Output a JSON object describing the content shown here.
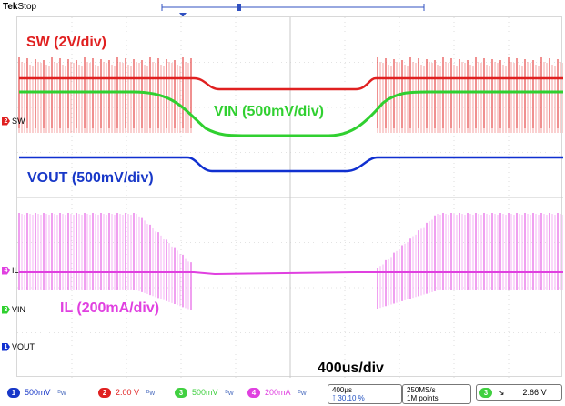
{
  "header": {
    "brand": "Tek",
    "status": "Stop"
  },
  "labels": {
    "sw": "SW (2V/div)",
    "vin": "VIN (500mV/div)",
    "vout": "VOUT (500mV/div)",
    "il": "IL (200mA/div)",
    "timebase": "400us/div"
  },
  "channel_markers": [
    {
      "id": "sw",
      "num": "2",
      "label": "SW",
      "color": "#e02020"
    },
    {
      "id": "il",
      "num": "4",
      "label": "IL",
      "color": "#e040e0"
    },
    {
      "id": "vin",
      "num": "3",
      "label": "VIN",
      "color": "#30d030"
    },
    {
      "id": "vout",
      "num": "1",
      "label": "VOUT",
      "color": "#1030d0"
    }
  ],
  "channels": [
    {
      "num": "1",
      "scale": "500mV",
      "color": "#1838c8"
    },
    {
      "num": "2",
      "scale": "2.00 V",
      "color": "#e02020"
    },
    {
      "num": "3",
      "scale": "500mV",
      "color": "#40d040"
    },
    {
      "num": "4",
      "scale": "200mA",
      "color": "#e040e0"
    }
  ],
  "horizontal": {
    "timescale": "400µs",
    "position": "30.10 %"
  },
  "acquisition": {
    "rate": "250MS/s",
    "points": "1M points"
  },
  "trigger": {
    "channel": "3",
    "slope": "↘",
    "level": "2.66 V",
    "color": "#40d040"
  },
  "colors": {
    "sw": "#e02020",
    "sw_fill": "#f4a0a0",
    "vin": "#30d030",
    "vout": "#1030d0",
    "il": "#e040e0",
    "il_fill": "#f6b0f6",
    "grid": "#c8c8c8",
    "vout_label": "#1838c8",
    "il_label": "#e040e0"
  }
}
